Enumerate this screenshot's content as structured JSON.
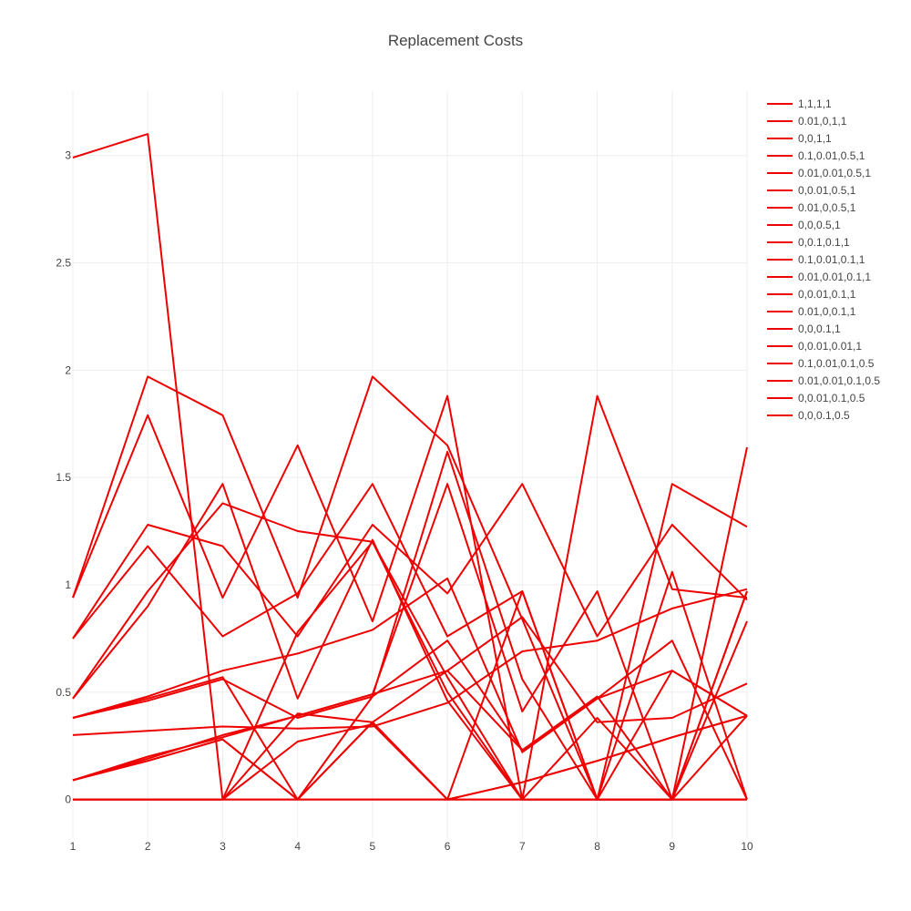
{
  "chart_data": {
    "type": "line",
    "title": "Replacement Costs",
    "xlabel": "",
    "ylabel": "",
    "x": [
      1,
      2,
      3,
      4,
      5,
      6,
      7,
      8,
      9,
      10
    ],
    "xlim": [
      1,
      10
    ],
    "ylim": [
      -0.18,
      3.3
    ],
    "x_ticks": [
      1,
      2,
      3,
      4,
      5,
      6,
      7,
      8,
      9,
      10
    ],
    "y_ticks": [
      0,
      0.5,
      1,
      1.5,
      2,
      2.5,
      3
    ],
    "grid": true,
    "legend_position": "right",
    "line_color": "#ee0000",
    "series": [
      {
        "name": "1,1,1,1",
        "values": [
          2.99,
          3.1,
          0,
          0,
          0,
          0,
          0,
          0,
          0,
          0
        ]
      },
      {
        "name": "0.01,0,1,1",
        "values": [
          0.94,
          1.97,
          1.79,
          0.94,
          1.97,
          1.65,
          0.84,
          0,
          0,
          0
        ]
      },
      {
        "name": "0,0,1,1",
        "values": [
          0.94,
          1.79,
          0.94,
          1.65,
          0.83,
          1.88,
          0,
          0,
          0,
          0
        ]
      },
      {
        "name": "0.1,0.01,0.5,1",
        "values": [
          0.75,
          1.28,
          1.18,
          0.76,
          1.28,
          0.96,
          1.47,
          0.76,
          1.28,
          0.93
        ]
      },
      {
        "name": "0.01,0.01,0.5,1",
        "values": [
          0.75,
          1.18,
          0.76,
          0.96,
          1.47,
          0.76,
          0.97,
          0,
          1.47,
          1.27
        ]
      },
      {
        "name": "0,0.01,0.5,1",
        "values": [
          0.47,
          0.9,
          1.47,
          0.47,
          1.21,
          0.46,
          0,
          1.88,
          0.98,
          0.94
        ]
      },
      {
        "name": "0.01,0,0.5,1",
        "values": [
          0.47,
          0.97,
          1.38,
          1.25,
          1.2,
          0.57,
          0,
          0,
          1.06,
          0
        ]
      },
      {
        "name": "0,0,0.5,1",
        "values": [
          0,
          0,
          0,
          0.78,
          1.2,
          0.5,
          0,
          0,
          0,
          1.64
        ]
      },
      {
        "name": "0,0.1,0.1,1",
        "values": [
          0.38,
          0.48,
          0.6,
          0.68,
          0.79,
          1.03,
          0.22,
          0.47,
          0.6,
          0.39
        ]
      },
      {
        "name": "0.1,0.01,0.1,1",
        "values": [
          0.38,
          0.46,
          0.56,
          0.38,
          0.48,
          0.74,
          0.23,
          0.47,
          0.74,
          0
        ]
      },
      {
        "name": "0.01,0.01,0.1,1",
        "values": [
          0.38,
          0.47,
          0.57,
          0,
          0.48,
          1.62,
          0.56,
          0,
          0.6,
          0.39
        ]
      },
      {
        "name": "0,0.01,0.1,1",
        "values": [
          0.09,
          0.2,
          0.29,
          0.39,
          0.49,
          1.47,
          0.41,
          0.97,
          0,
          0.97
        ]
      },
      {
        "name": "0.01,0,0.1,1",
        "values": [
          0.09,
          0.19,
          0.3,
          0.39,
          0.49,
          0.6,
          0.85,
          0.36,
          0.38,
          0.54
        ]
      },
      {
        "name": "0,0,0.1,1",
        "values": [
          0,
          0,
          0,
          0.27,
          0.35,
          0,
          0.97,
          0,
          0,
          0.83
        ]
      },
      {
        "name": "0,0.01,0.01,1",
        "values": [
          0.3,
          0.32,
          0.34,
          0.33,
          0.34,
          0.45,
          0.69,
          0.74,
          0.89,
          0.98
        ]
      },
      {
        "name": "0.1,0.01,0.1,0.5",
        "values": [
          0.09,
          0.18,
          0.28,
          0,
          0.36,
          0,
          0.08,
          0.18,
          0.29,
          0.39
        ]
      },
      {
        "name": "0.01,0.01,0.1,0.5",
        "values": [
          0.09,
          0.18,
          0.28,
          0,
          0.36,
          0,
          0.08,
          0.18,
          0.29,
          0.39
        ]
      },
      {
        "name": "0,0.01,0.1,0.5",
        "values": [
          0,
          0,
          0,
          0.4,
          0.36,
          0.6,
          0.23,
          0.48,
          0,
          0.97
        ]
      },
      {
        "name": "0,0,0.1,0.5",
        "values": [
          0,
          0,
          0,
          0,
          0,
          0,
          0,
          0.38,
          0,
          0.39
        ]
      }
    ]
  }
}
